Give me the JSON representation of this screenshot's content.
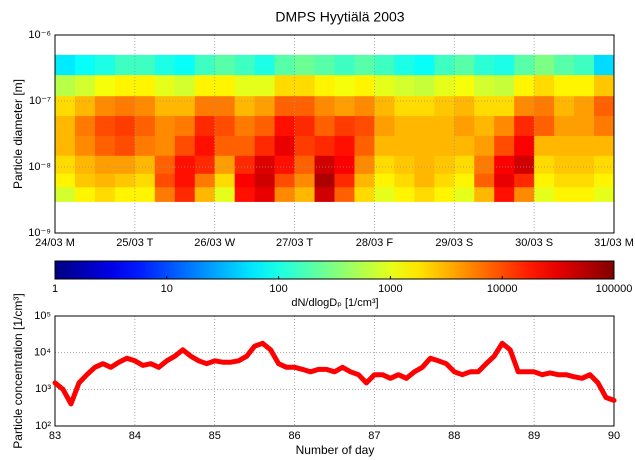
{
  "chart_data": [
    {
      "type": "heatmap",
      "title": "DMPS Hyytiälä 2003",
      "ylabel": "Particle diameter [m]",
      "xlim": [
        83,
        90
      ],
      "xticks": [
        {
          "value": 83,
          "label": "24/03 M"
        },
        {
          "value": 84,
          "label": "25/03 T"
        },
        {
          "value": 85,
          "label": "26/03 W"
        },
        {
          "value": 86,
          "label": "27/03 T"
        },
        {
          "value": 87,
          "label": "28/03 F"
        },
        {
          "value": 88,
          "label": "29/03 S"
        },
        {
          "value": 89,
          "label": "30/03 S"
        },
        {
          "value": 90,
          "label": "31/03 M"
        }
      ],
      "ylim": [
        1e-09,
        1e-06
      ],
      "log_y": true,
      "yticks": [
        {
          "value": 1e-09,
          "label": "10⁻⁹"
        },
        {
          "value": 1e-08,
          "label": "10⁻⁸"
        },
        {
          "value": 1e-07,
          "label": "10⁻⁷"
        },
        {
          "value": 1e-06,
          "label": "10⁻⁶"
        }
      ],
      "grid": true,
      "colormap": "jet",
      "clim": [
        1,
        100000
      ],
      "colorbar": {
        "label": "dN/dlogDₚ [1/cm³]",
        "ticks": [
          1,
          10,
          100,
          1000,
          10000,
          100000
        ]
      },
      "x_bins": [
        83,
        83.25,
        83.5,
        83.75,
        84,
        84.25,
        84.5,
        84.75,
        85,
        85.25,
        85.5,
        85.75,
        86,
        86.25,
        86.5,
        86.75,
        87,
        87.25,
        87.5,
        87.75,
        88,
        88.25,
        88.5,
        88.75,
        89,
        89.25,
        89.5,
        89.75,
        90
      ],
      "y_bins": [
        3e-09,
        5e-09,
        8e-09,
        1.5e-08,
        3e-08,
        6e-08,
        1.2e-07,
        2.5e-07,
        5e-07
      ],
      "z": [
        [
          800,
          1500,
          2000,
          1500,
          1500,
          6000,
          15000,
          3000,
          1000,
          20000,
          30000,
          5000,
          3000,
          40000,
          8000,
          2000,
          1000,
          1500,
          2000,
          1500,
          1000,
          3000,
          20000,
          5000,
          1000,
          1500,
          1500,
          1000
        ],
        [
          1500,
          2500,
          3000,
          2500,
          2000,
          10000,
          20000,
          6000,
          2000,
          25000,
          40000,
          10000,
          5000,
          60000,
          15000,
          3000,
          1500,
          2000,
          3000,
          2000,
          1500,
          8000,
          30000,
          15000,
          1500,
          2000,
          2000,
          1500
        ],
        [
          2000,
          3000,
          4000,
          4000,
          3000,
          8000,
          20000,
          15000,
          4000,
          15000,
          35000,
          20000,
          8000,
          40000,
          25000,
          5000,
          2000,
          2500,
          3000,
          2500,
          2000,
          6000,
          25000,
          40000,
          2000,
          2500,
          2500,
          2000
        ],
        [
          3000,
          5000,
          8000,
          10000,
          6000,
          5000,
          10000,
          20000,
          8000,
          8000,
          15000,
          30000,
          12000,
          15000,
          20000,
          8000,
          3000,
          3000,
          3000,
          3000,
          3000,
          4000,
          10000,
          25000,
          3000,
          3000,
          3000,
          3000
        ],
        [
          3000,
          6000,
          10000,
          12000,
          8000,
          5000,
          6000,
          15000,
          10000,
          6000,
          8000,
          20000,
          15000,
          8000,
          12000,
          10000,
          4000,
          3000,
          3000,
          3000,
          4000,
          3000,
          5000,
          15000,
          8000,
          4000,
          4000,
          6000
        ],
        [
          2000,
          3000,
          5000,
          6000,
          5000,
          3000,
          3000,
          6000,
          6000,
          3000,
          4000,
          8000,
          8000,
          5000,
          4000,
          5000,
          3000,
          2000,
          2000,
          2500,
          3000,
          2000,
          2000,
          5000,
          6000,
          3000,
          4000,
          8000
        ],
        [
          600,
          800,
          1200,
          1500,
          1500,
          1000,
          800,
          1500,
          1500,
          1000,
          1000,
          2000,
          2000,
          1500,
          1200,
          1500,
          1000,
          800,
          700,
          1000,
          1200,
          800,
          700,
          1500,
          2000,
          1500,
          1500,
          2500
        ],
        [
          60,
          80,
          100,
          150,
          150,
          100,
          80,
          150,
          200,
          150,
          100,
          200,
          250,
          200,
          150,
          200,
          150,
          100,
          80,
          150,
          200,
          120,
          100,
          200,
          300,
          200,
          150,
          50
        ]
      ]
    },
    {
      "type": "line",
      "xlabel": "Number of day",
      "ylabel": "Particle concentration [1/cm³]",
      "xlim": [
        83,
        90
      ],
      "xticks": [
        83,
        84,
        85,
        86,
        87,
        88,
        89,
        90
      ],
      "ylim": [
        100,
        100000
      ],
      "log_y": true,
      "yticks": [
        {
          "value": 100,
          "label": "10²"
        },
        {
          "value": 1000,
          "label": "10³"
        },
        {
          "value": 10000,
          "label": "10⁴"
        },
        {
          "value": 100000,
          "label": "10⁵"
        }
      ],
      "grid": true,
      "color": "#ff0000",
      "x": [
        83.0,
        83.1,
        83.2,
        83.3,
        83.4,
        83.5,
        83.6,
        83.7,
        83.8,
        83.9,
        84.0,
        84.1,
        84.2,
        84.3,
        84.4,
        84.5,
        84.6,
        84.7,
        84.8,
        84.9,
        85.0,
        85.1,
        85.2,
        85.3,
        85.4,
        85.5,
        85.6,
        85.7,
        85.8,
        85.9,
        86.0,
        86.1,
        86.2,
        86.3,
        86.4,
        86.5,
        86.6,
        86.7,
        86.8,
        86.9,
        87.0,
        87.1,
        87.2,
        87.3,
        87.4,
        87.5,
        87.6,
        87.7,
        87.8,
        87.9,
        88.0,
        88.1,
        88.2,
        88.3,
        88.4,
        88.5,
        88.6,
        88.7,
        88.8,
        88.9,
        89.0,
        89.1,
        89.2,
        89.3,
        89.4,
        89.5,
        89.6,
        89.7,
        89.8,
        89.9,
        90.0
      ],
      "values": [
        1500,
        1000,
        400,
        1500,
        2500,
        4000,
        5000,
        4000,
        5500,
        7000,
        6000,
        4500,
        5000,
        4000,
        6000,
        8000,
        12000,
        8000,
        6000,
        5000,
        6000,
        5500,
        5500,
        6000,
        8000,
        15000,
        18000,
        12000,
        5000,
        4000,
        4000,
        3500,
        3000,
        3500,
        3500,
        3000,
        4000,
        3000,
        2500,
        1500,
        2500,
        2500,
        2000,
        2500,
        2000,
        3000,
        4000,
        7000,
        6000,
        5000,
        3000,
        2500,
        3000,
        3000,
        5000,
        8000,
        18000,
        12000,
        3000,
        3000,
        3000,
        2500,
        2800,
        2500,
        2500,
        2200,
        2000,
        2500,
        1500,
        600,
        500
      ]
    }
  ]
}
